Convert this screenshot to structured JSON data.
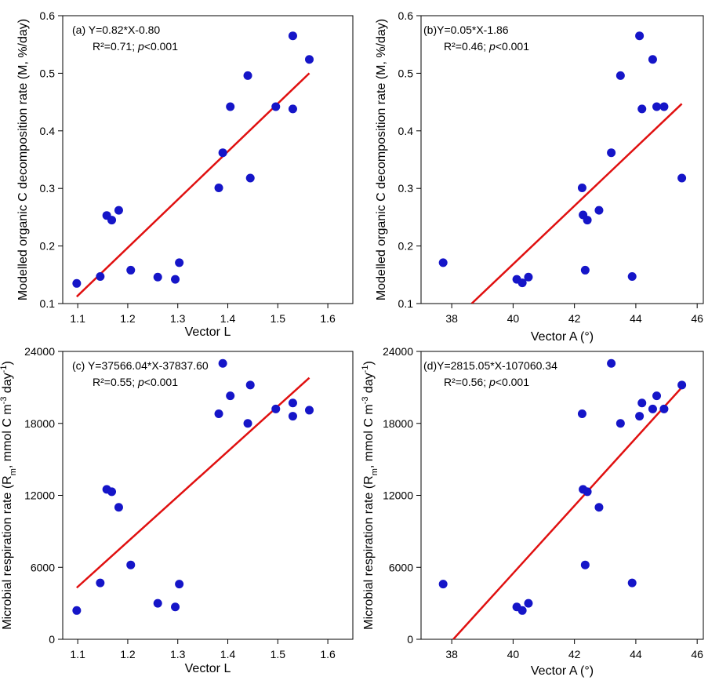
{
  "colors": {
    "point": "#1515c8",
    "fit_line": "#e01010",
    "axis": "#000000"
  },
  "chart_data": [
    {
      "type": "scatter",
      "panel": "(a)",
      "equation": "Y=0.82*X-0.80",
      "r2": "R²=0.71;",
      "p_italic": "p",
      "p_rest": "<0.001",
      "xlabel": "Vector L",
      "ylabel": "Modelled organic C decomposition rate (M, %/day)",
      "xlim": [
        1.07,
        1.65
      ],
      "ylim": [
        0.1,
        0.6
      ],
      "xticks": [
        1.1,
        1.2,
        1.3,
        1.4,
        1.5,
        1.6
      ],
      "xtick_labels": [
        "1.1",
        "1.2",
        "1.3",
        "1.4",
        "1.5",
        "1.6"
      ],
      "yticks": [
        0.1,
        0.2,
        0.3,
        0.4,
        0.5,
        0.6
      ],
      "ytick_labels": [
        "0.1",
        "0.2",
        "0.3",
        "0.4",
        "0.5",
        "0.6"
      ],
      "points": [
        [
          1.098,
          0.135
        ],
        [
          1.145,
          0.147
        ],
        [
          1.158,
          0.253
        ],
        [
          1.168,
          0.245
        ],
        [
          1.182,
          0.262
        ],
        [
          1.206,
          0.158
        ],
        [
          1.26,
          0.146
        ],
        [
          1.295,
          0.142
        ],
        [
          1.303,
          0.171
        ],
        [
          1.382,
          0.301
        ],
        [
          1.39,
          0.362
        ],
        [
          1.405,
          0.442
        ],
        [
          1.44,
          0.496
        ],
        [
          1.445,
          0.318
        ],
        [
          1.496,
          0.442
        ],
        [
          1.53,
          0.438
        ],
        [
          1.53,
          0.565
        ],
        [
          1.563,
          0.524
        ]
      ],
      "fit": {
        "x": [
          1.098,
          1.563
        ],
        "y": [
          0.112,
          0.5
        ]
      }
    },
    {
      "type": "scatter",
      "panel": "(b)",
      "equation": "Y=0.05*X-1.86",
      "r2": "R²=0.46;",
      "p_italic": "p",
      "p_rest": "<0.001",
      "xlabel": "Vector A (°)",
      "ylabel": "Modelled organic C decomposition rate (M, %/day)",
      "xlim": [
        37,
        46.2
      ],
      "ylim": [
        0.1,
        0.6
      ],
      "xticks": [
        38,
        40,
        42,
        44,
        46
      ],
      "xtick_labels": [
        "38",
        "40",
        "42",
        "44",
        "46"
      ],
      "yticks": [
        0.1,
        0.2,
        0.3,
        0.4,
        0.5,
        0.6
      ],
      "ytick_labels": [
        "0.1",
        "0.2",
        "0.3",
        "0.4",
        "0.5",
        "0.6"
      ],
      "points": [
        [
          37.72,
          0.171
        ],
        [
          40.12,
          0.142
        ],
        [
          40.3,
          0.136
        ],
        [
          40.5,
          0.146
        ],
        [
          42.25,
          0.301
        ],
        [
          42.28,
          0.254
        ],
        [
          42.35,
          0.158
        ],
        [
          42.42,
          0.245
        ],
        [
          42.8,
          0.262
        ],
        [
          43.2,
          0.362
        ],
        [
          43.5,
          0.496
        ],
        [
          43.88,
          0.147
        ],
        [
          44.12,
          0.565
        ],
        [
          44.2,
          0.438
        ],
        [
          44.55,
          0.524
        ],
        [
          44.68,
          0.442
        ],
        [
          44.92,
          0.442
        ],
        [
          45.5,
          0.318
        ]
      ],
      "fit": {
        "x": [
          38.65,
          45.5
        ],
        "y": [
          0.1,
          0.447
        ]
      }
    },
    {
      "type": "scatter",
      "panel": "(c)",
      "equation": "Y=37566.04*X-37837.60",
      "r2": "R²=0.55;",
      "p_italic": "p",
      "p_rest": "<0.001",
      "xlabel": "Vector L",
      "ylabel": "Microbial respiration rate (Rm, mmol C m-3 day-1)",
      "ylabel_parts": [
        "Microbial respiration rate (R",
        "m",
        ", mmol C m",
        "-3",
        " day",
        "-1",
        ")"
      ],
      "xlim": [
        1.07,
        1.65
      ],
      "ylim": [
        0,
        24000
      ],
      "xticks": [
        1.1,
        1.2,
        1.3,
        1.4,
        1.5,
        1.6
      ],
      "xtick_labels": [
        "1.1",
        "1.2",
        "1.3",
        "1.4",
        "1.5",
        "1.6"
      ],
      "yticks": [
        0,
        6000,
        12000,
        18000,
        24000
      ],
      "ytick_labels": [
        "0",
        "6000",
        "12000",
        "18000",
        "24000"
      ],
      "points": [
        [
          1.098,
          2400
        ],
        [
          1.145,
          4700
        ],
        [
          1.158,
          12500
        ],
        [
          1.168,
          12300
        ],
        [
          1.182,
          11000
        ],
        [
          1.206,
          6200
        ],
        [
          1.26,
          3000
        ],
        [
          1.295,
          2700
        ],
        [
          1.303,
          4600
        ],
        [
          1.382,
          18800
        ],
        [
          1.39,
          23000
        ],
        [
          1.405,
          20300
        ],
        [
          1.44,
          18000
        ],
        [
          1.445,
          21200
        ],
        [
          1.496,
          19200
        ],
        [
          1.53,
          18600
        ],
        [
          1.53,
          19700
        ],
        [
          1.563,
          19100
        ]
      ],
      "fit": {
        "x": [
          1.098,
          1.563
        ],
        "y": [
          4300,
          21800
        ]
      }
    },
    {
      "type": "scatter",
      "panel": "(d)",
      "equation": "Y=2815.05*X-107060.34",
      "r2": "R²=0.56;",
      "p_italic": "p",
      "p_rest": "<0.001",
      "xlabel": "Vector A (°)",
      "ylabel": "Microbial respiration rate (Rm, mmol C m-3 day-1)",
      "ylabel_parts": [
        "Microbial respiration rate (R",
        "m",
        ", mmol C m",
        "-3",
        " day",
        "-1",
        ")"
      ],
      "xlim": [
        37,
        46.2
      ],
      "ylim": [
        0,
        24000
      ],
      "xticks": [
        38,
        40,
        42,
        44,
        46
      ],
      "xtick_labels": [
        "38",
        "40",
        "42",
        "44",
        "46"
      ],
      "yticks": [
        0,
        6000,
        12000,
        18000,
        24000
      ],
      "ytick_labels": [
        "0",
        "6000",
        "12000",
        "18000",
        "24000"
      ],
      "points": [
        [
          37.72,
          4600
        ],
        [
          40.12,
          2700
        ],
        [
          40.3,
          2400
        ],
        [
          40.5,
          3000
        ],
        [
          42.25,
          18800
        ],
        [
          42.28,
          12500
        ],
        [
          42.35,
          6200
        ],
        [
          42.42,
          12300
        ],
        [
          42.8,
          11000
        ],
        [
          43.2,
          23000
        ],
        [
          43.5,
          18000
        ],
        [
          43.88,
          4700
        ],
        [
          44.12,
          18600
        ],
        [
          44.2,
          19700
        ],
        [
          44.55,
          19200
        ],
        [
          44.68,
          20300
        ],
        [
          44.92,
          19200
        ],
        [
          45.5,
          21200
        ]
      ],
      "fit": {
        "x": [
          38.05,
          45.5
        ],
        "y": [
          0,
          21000
        ]
      }
    }
  ]
}
